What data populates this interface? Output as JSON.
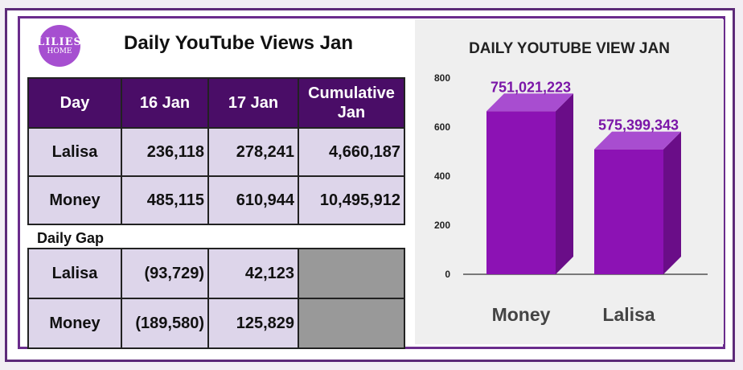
{
  "header": {
    "logo_text_top": "LILIES",
    "logo_text_bottom": "HOME",
    "title": "Daily YouTube Views Jan"
  },
  "table_main": {
    "headers": [
      "Day",
      "16 Jan",
      "17 Jan",
      "Cumulative Jan"
    ],
    "rows": [
      [
        "Lalisa",
        "236,118",
        "278,241",
        "4,660,187"
      ],
      [
        "Money",
        "485,115",
        "610,944",
        "10,495,912"
      ]
    ]
  },
  "gap_section": {
    "label": "Daily Gap",
    "rows": [
      [
        "Lalisa",
        "(93,729)",
        "42,123",
        ""
      ],
      [
        "Money",
        "(189,580)",
        "125,829",
        ""
      ]
    ]
  },
  "colors": {
    "header_bg": "#4a0d67",
    "cell_bg": "#ddd5ea",
    "bar_front": "#8c12b4",
    "bar_top": "#a84dd0",
    "bar_side": "#6a0d88",
    "label_color": "#7b16a8"
  },
  "chart_data": {
    "type": "bar",
    "title": "DAILY YOUTUBE VIEW JAN",
    "categories": [
      "Money",
      "Lalisa"
    ],
    "values": [
      751021223,
      575399343
    ],
    "data_labels": [
      "751,021,223",
      "575,399,343"
    ],
    "y_ticks": [
      "0",
      "200",
      "400",
      "600",
      "800"
    ],
    "ylim": [
      0,
      800
    ],
    "grid": false,
    "legend": "none"
  }
}
